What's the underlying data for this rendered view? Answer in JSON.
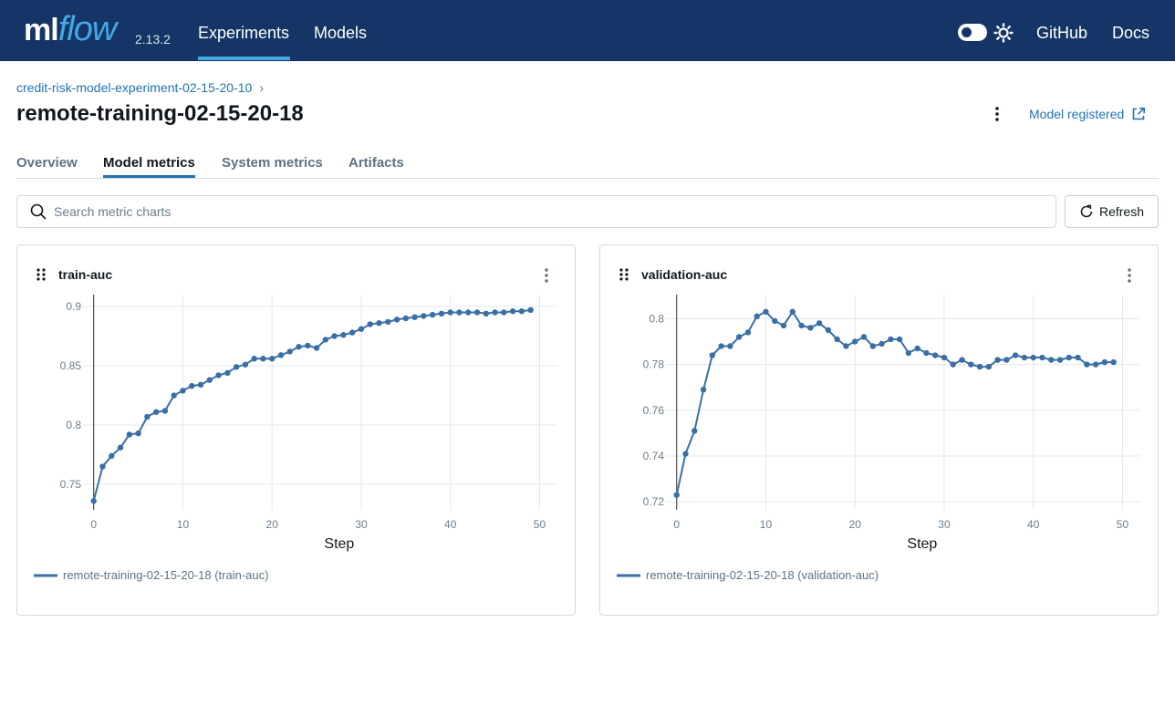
{
  "header": {
    "logo_ml": "ml",
    "logo_flow": "flow",
    "version": "2.13.2",
    "nav": [
      {
        "label": "Experiments",
        "active": true
      },
      {
        "label": "Models",
        "active": false
      }
    ],
    "right_links": [
      "GitHub",
      "Docs"
    ],
    "theme_icon": "sun-icon",
    "colors": {
      "bar": "#143566",
      "accent": "#43a9e3"
    }
  },
  "breadcrumb": {
    "experiment": "credit-risk-model-experiment-02-15-20-10",
    "separator": "›"
  },
  "run": {
    "title": "remote-training-02-15-20-18",
    "model_link_label": "Model registered"
  },
  "tabs": [
    {
      "label": "Overview",
      "active": false
    },
    {
      "label": "Model metrics",
      "active": true
    },
    {
      "label": "System metrics",
      "active": false
    },
    {
      "label": "Artifacts",
      "active": false
    }
  ],
  "search": {
    "placeholder": "Search metric charts",
    "value": ""
  },
  "toolbar": {
    "refresh_label": "Refresh"
  },
  "chart_data": [
    {
      "type": "line",
      "title": "train-auc",
      "xlabel": "Step",
      "ylabel": "",
      "xlim": [
        -1.2,
        52
      ],
      "ylim": [
        0.7285,
        0.91
      ],
      "xticks": [
        0,
        10,
        20,
        30,
        40,
        50
      ],
      "yticks": [
        0.75,
        0.8,
        0.85,
        0.9
      ],
      "ytick_labels": [
        "0.75",
        "0.8",
        "0.85",
        "0.9"
      ],
      "color": "#3a6fa5",
      "grid": true,
      "legend_position": "bottom",
      "series": [
        {
          "name": "remote-training-02-15-20-18 (train-auc)",
          "x": [
            0,
            1,
            2,
            3,
            4,
            5,
            6,
            7,
            8,
            9,
            10,
            11,
            12,
            13,
            14,
            15,
            16,
            17,
            18,
            19,
            20,
            21,
            22,
            23,
            24,
            25,
            26,
            27,
            28,
            29,
            30,
            31,
            32,
            33,
            34,
            35,
            36,
            37,
            38,
            39,
            40,
            41,
            42,
            43,
            44,
            45,
            46,
            47,
            48,
            49
          ],
          "y": [
            0.736,
            0.765,
            0.774,
            0.781,
            0.792,
            0.793,
            0.807,
            0.811,
            0.812,
            0.825,
            0.829,
            0.833,
            0.834,
            0.838,
            0.842,
            0.844,
            0.849,
            0.851,
            0.856,
            0.856,
            0.856,
            0.859,
            0.862,
            0.866,
            0.867,
            0.865,
            0.872,
            0.875,
            0.876,
            0.878,
            0.881,
            0.885,
            0.886,
            0.887,
            0.889,
            0.89,
            0.891,
            0.892,
            0.893,
            0.894,
            0.895,
            0.895,
            0.895,
            0.895,
            0.894,
            0.895,
            0.895,
            0.896,
            0.896,
            0.897
          ]
        }
      ]
    },
    {
      "type": "line",
      "title": "validation-auc",
      "xlabel": "Step",
      "ylabel": "",
      "xlim": [
        -1.2,
        52
      ],
      "ylim": [
        0.7165,
        0.8105
      ],
      "xticks": [
        0,
        10,
        20,
        30,
        40,
        50
      ],
      "yticks": [
        0.72,
        0.74,
        0.76,
        0.78,
        0.8
      ],
      "ytick_labels": [
        "0.72",
        "0.74",
        "0.76",
        "0.78",
        "0.8"
      ],
      "color": "#3a6fa5",
      "grid": true,
      "legend_position": "bottom",
      "series": [
        {
          "name": "remote-training-02-15-20-18 (validation-auc)",
          "x": [
            0,
            1,
            2,
            3,
            4,
            5,
            6,
            7,
            8,
            9,
            10,
            11,
            12,
            13,
            14,
            15,
            16,
            17,
            18,
            19,
            20,
            21,
            22,
            23,
            24,
            25,
            26,
            27,
            28,
            29,
            30,
            31,
            32,
            33,
            34,
            35,
            36,
            37,
            38,
            39,
            40,
            41,
            42,
            43,
            44,
            45,
            46,
            47,
            48,
            49
          ],
          "y": [
            0.723,
            0.741,
            0.751,
            0.769,
            0.784,
            0.788,
            0.788,
            0.792,
            0.794,
            0.801,
            0.803,
            0.799,
            0.797,
            0.803,
            0.797,
            0.796,
            0.798,
            0.795,
            0.791,
            0.788,
            0.79,
            0.792,
            0.788,
            0.789,
            0.791,
            0.791,
            0.785,
            0.787,
            0.785,
            0.784,
            0.783,
            0.78,
            0.782,
            0.78,
            0.779,
            0.779,
            0.782,
            0.782,
            0.784,
            0.783,
            0.783,
            0.783,
            0.782,
            0.782,
            0.783,
            0.783,
            0.78,
            0.78,
            0.781,
            0.781
          ]
        }
      ]
    }
  ]
}
